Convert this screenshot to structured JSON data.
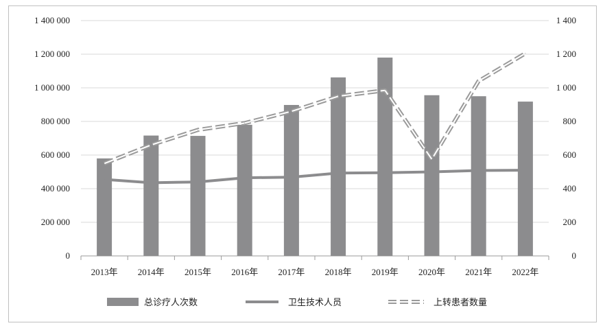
{
  "chart_data": {
    "type": "bar",
    "title": "",
    "xlabel": "",
    "ylabel": "",
    "categories": [
      "2013年",
      "2014年",
      "2015年",
      "2016年",
      "2017年",
      "2018年",
      "2019年",
      "2020年",
      "2021年",
      "2022年"
    ],
    "y_left": {
      "ylim": [
        0,
        1400000
      ],
      "ticks": [
        0,
        200000,
        400000,
        600000,
        800000,
        1000000,
        1200000,
        1400000
      ],
      "tick_labels": [
        "0",
        "200 000",
        "400 000",
        "600 000",
        "800 000",
        "1 000 000",
        "1 200 000",
        "1 400 000"
      ]
    },
    "y_right": {
      "ylim": [
        0,
        1400
      ],
      "ticks": [
        0,
        200,
        400,
        600,
        800,
        1000,
        1200,
        1400
      ],
      "tick_labels": [
        "0",
        "200",
        "400",
        "600",
        "800",
        "1 000",
        "1 200",
        "1 400"
      ]
    },
    "grid": true,
    "legend_position": "bottom",
    "series": [
      {
        "name": "总诊疗人次数",
        "type": "bar",
        "axis": "left",
        "color": "#8c8c8e",
        "values": [
          580000,
          716000,
          714000,
          780000,
          898000,
          1062000,
          1180000,
          956000,
          950000,
          918000
        ]
      },
      {
        "name": "卫生技术人员",
        "type": "line",
        "axis": "right",
        "color": "#8c8c8e",
        "values": [
          455,
          435,
          440,
          465,
          468,
          493,
          495,
          500,
          508,
          510
        ]
      },
      {
        "name": "上转患者数量",
        "type": "line-dashed",
        "axis": "right",
        "color": "#9a9a9a",
        "values": [
          550,
          660,
          750,
          790,
          860,
          950,
          985,
          575,
          1040,
          1205
        ]
      }
    ]
  }
}
